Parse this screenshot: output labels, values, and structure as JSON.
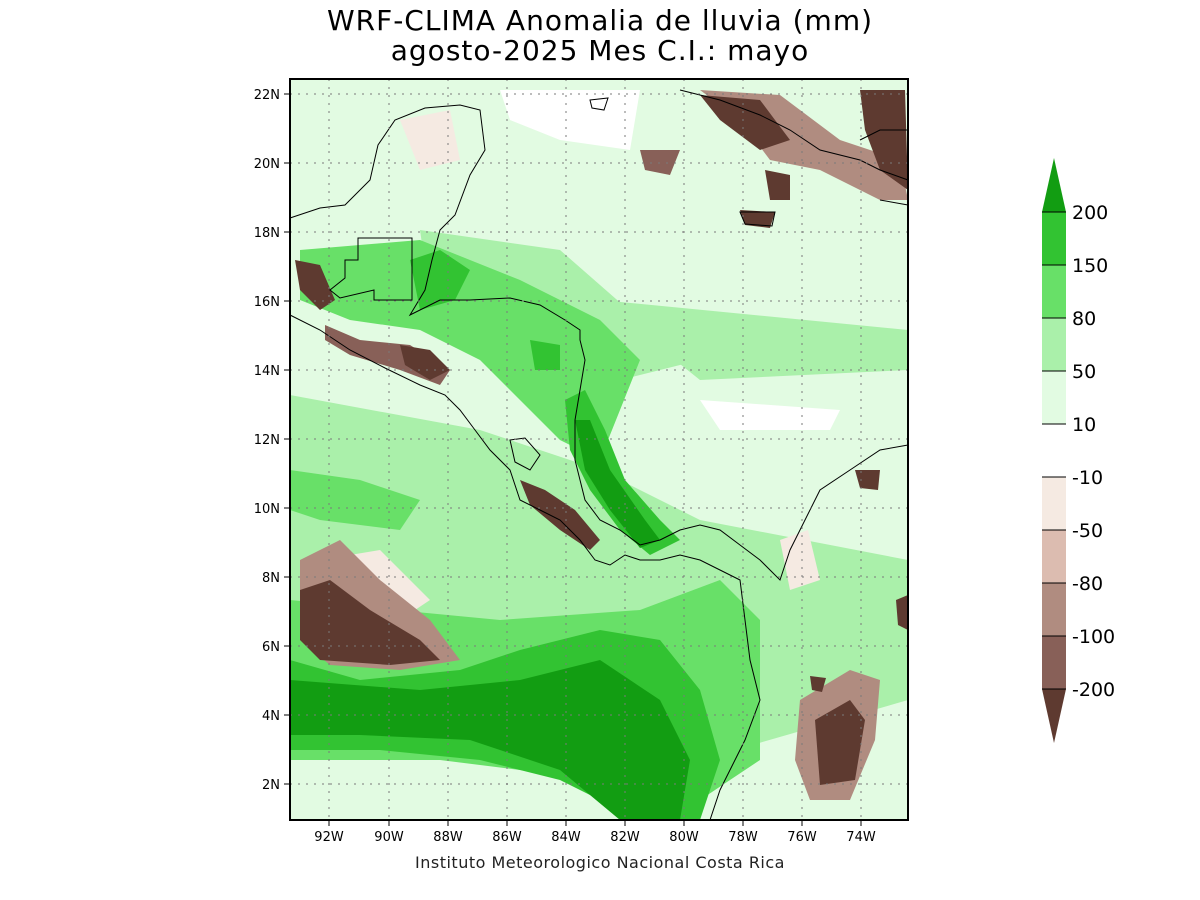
{
  "title_line1": "WRF-CLIMA Anomalia de lluvia (mm)",
  "title_line2": "agosto-2025 Mes C.I.: mayo",
  "footer": "Instituto Meteorologico Nacional Costa Rica",
  "lat_ticks": [
    "2N",
    "4N",
    "6N",
    "8N",
    "10N",
    "12N",
    "14N",
    "16N",
    "18N",
    "20N",
    "22N"
  ],
  "lon_ticks": [
    "92W",
    "90W",
    "88W",
    "86W",
    "84W",
    "82W",
    "80W",
    "78W",
    "76W",
    "74W"
  ],
  "extent": {
    "lon_min": -93.3,
    "lon_max": -72.4,
    "lat_min": 1.0,
    "lat_max": 22.4
  },
  "colorbar": {
    "levels": [
      "200",
      "150",
      "80",
      "50",
      "10",
      "-10",
      "-50",
      "-80",
      "-100",
      "-200"
    ],
    "colors": [
      "#129d12",
      "#32c332",
      "#68e068",
      "#aaf0aa",
      "#e2fbe2",
      "#ffffff",
      "#f5eae2",
      "#dcbcb0",
      "#b08c80",
      "#886058",
      "#5e3a30"
    ]
  },
  "colors": {
    "wet_strong": "#129d12",
    "wet_high": "#32c332",
    "wet_mid": "#68e068",
    "wet_low": "#aaf0aa",
    "wet_slight": "#e2fbe2",
    "neutral": "#ffffff",
    "dry_slight": "#f5eae2",
    "dry_low": "#dcbcb0",
    "dry_mid": "#b08c80",
    "dry_high": "#886058",
    "dry_strong": "#5e3a30"
  },
  "chart_data": {
    "type": "heatmap",
    "variable": "Anomalia de lluvia (mm)",
    "region": {
      "lon_range": [
        -93.3,
        -72.4
      ],
      "lat_range": [
        1.0,
        22.4
      ]
    },
    "color_levels": [
      -200,
      -100,
      -80,
      -50,
      -10,
      10,
      50,
      80,
      150,
      200
    ],
    "patterns": [
      {
        "lon": -81.5,
        "lat": 9.5,
        "anomaly": 200
      },
      {
        "lon": -86.5,
        "lat": 16.0,
        "anomaly": 150
      },
      {
        "lon": -85.0,
        "lat": 14.5,
        "anomaly": 150
      },
      {
        "lon": -84.0,
        "lat": 4.5,
        "anomaly": 200
      },
      {
        "lon": -90.0,
        "lat": 3.5,
        "anomaly": 200
      },
      {
        "lon": -78.5,
        "lat": 6.5,
        "anomaly": 80
      },
      {
        "lon": -91.5,
        "lat": 6.5,
        "anomaly": -200
      },
      {
        "lon": -92.0,
        "lat": 16.5,
        "anomaly": -150
      },
      {
        "lon": -89.5,
        "lat": 14.5,
        "anomaly": -100
      },
      {
        "lon": -84.0,
        "lat": 9.7,
        "anomaly": -150
      },
      {
        "lon": -76.0,
        "lat": 20.8,
        "anomaly": -150
      },
      {
        "lon": -77.2,
        "lat": 18.2,
        "anomaly": -150
      },
      {
        "lon": -74.5,
        "lat": 3.5,
        "anomaly": -150
      },
      {
        "lon": -77.0,
        "lat": 14.5,
        "anomaly": 10
      },
      {
        "lon": -86.0,
        "lat": 20.5,
        "anomaly": 10
      }
    ]
  }
}
